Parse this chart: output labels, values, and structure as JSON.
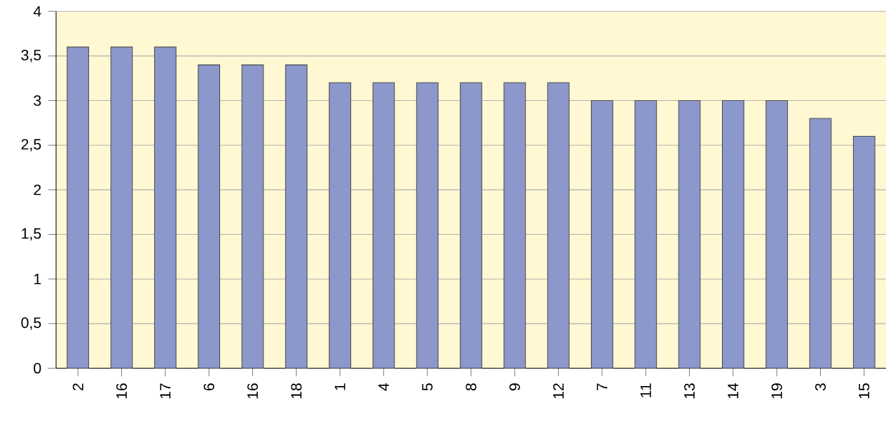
{
  "chart_data": {
    "type": "bar",
    "categories": [
      "2",
      "16",
      "17",
      "6",
      "16",
      "18",
      "1",
      "4",
      "5",
      "8",
      "9",
      "12",
      "7",
      "11",
      "13",
      "14",
      "19",
      "3",
      "15"
    ],
    "values": [
      3.6,
      3.6,
      3.6,
      3.4,
      3.4,
      3.4,
      3.2,
      3.2,
      3.2,
      3.2,
      3.2,
      3.2,
      3.0,
      3.0,
      3.0,
      3.0,
      3.0,
      2.8,
      2.6
    ],
    "color": "#8c98cc",
    "ylim": [
      0,
      4
    ],
    "yticks": [
      0,
      {
        "value": 0.5,
        "label": "0,5"
      },
      1,
      {
        "value": 1.5,
        "label": "1,5"
      },
      2,
      {
        "value": 2.5,
        "label": "2,5"
      },
      3,
      {
        "value": 3.5,
        "label": "3,5"
      },
      4
    ],
    "grid": "y"
  }
}
